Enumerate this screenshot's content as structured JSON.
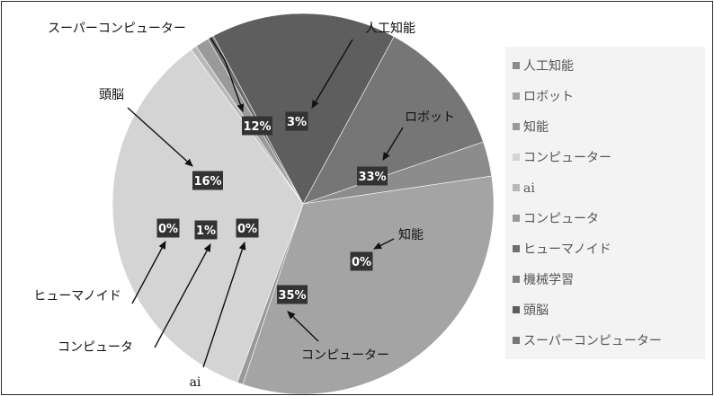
{
  "chart_data": {
    "type": "pie",
    "title": "",
    "slices": [
      {
        "label": "人工知能",
        "value": 3,
        "value_label": "3%",
        "color": "#8c8c8c"
      },
      {
        "label": "ロボット",
        "value": 33,
        "value_label": "33%",
        "color": "#a4a4a4"
      },
      {
        "label": "知能",
        "value": 0,
        "value_label": "0%",
        "color": "#999999"
      },
      {
        "label": "コンピューター",
        "value": 35,
        "value_label": "35%",
        "color": "#d4d4d4"
      },
      {
        "label": "ai",
        "value": 0,
        "value_label": "0%",
        "color": "#b8b8b8"
      },
      {
        "label": "コンピュータ",
        "value": 1,
        "value_label": "1%",
        "color": "#9a9a9a"
      },
      {
        "label": "ヒューマノイド",
        "value": 0,
        "value_label": "0%",
        "color": "#6e6e6e"
      },
      {
        "label": "機械学習",
        "value": 0,
        "value_label": "0%",
        "color": "#808080"
      },
      {
        "label": "頭脳",
        "value": 16,
        "value_label": "16%",
        "color": "#5e5e5e"
      },
      {
        "label": "スーパーコンピューター",
        "value": 12,
        "value_label": "12%",
        "color": "#767676"
      }
    ],
    "legend": {
      "position": "right",
      "items": [
        "人工知能",
        "ロボット",
        "知能",
        "コンピューター",
        "ai",
        "コンピュータ",
        "ヒューマノイド",
        "機械学習",
        "頭脳",
        "スーパーコンピューター"
      ]
    },
    "annotations": [
      "スーパーコンピューター",
      "人工知能",
      "ロボット",
      "頭脳",
      "知能",
      "ヒューマノイド",
      "コンピュータ",
      "ai",
      "コンピューター"
    ]
  }
}
